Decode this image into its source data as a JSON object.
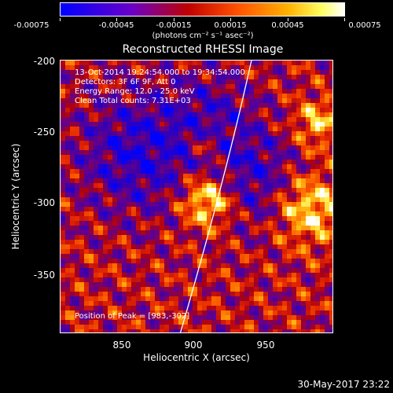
{
  "colorbar": {
    "ticks": [
      "-0.00075",
      "-0.00045",
      "-0.00015",
      "0.00015",
      "0.00045",
      "0.00075"
    ],
    "units": "(photons cm⁻² s⁻¹ asec⁻²)",
    "range": [
      -0.00075,
      0.00075
    ]
  },
  "title": "Reconstructed RHESSI Image",
  "annotations": {
    "line1": "13-Oct-2014 19:24:54.000 to 19:34:54.000",
    "line2": "Detectors: 3F 6F 9F, Att 0",
    "line3": "Energy Range: 12.0 - 25.0 keV",
    "line4": "Clean     Total counts: 7.31E+03",
    "peak": "Position of Peak = [983,-302]"
  },
  "axes": {
    "xlabel": "Heliocentric X (arcsec)",
    "ylabel": "Heliocentric Y (arcsec)",
    "xticks": [
      "850",
      "900",
      "950"
    ],
    "yticks": [
      "-200",
      "-250",
      "-300",
      "-350"
    ],
    "xlim": [
      810,
      995
    ],
    "ylim": [
      -392,
      -195
    ]
  },
  "datestamp": "30-May-2017 23:22"
}
